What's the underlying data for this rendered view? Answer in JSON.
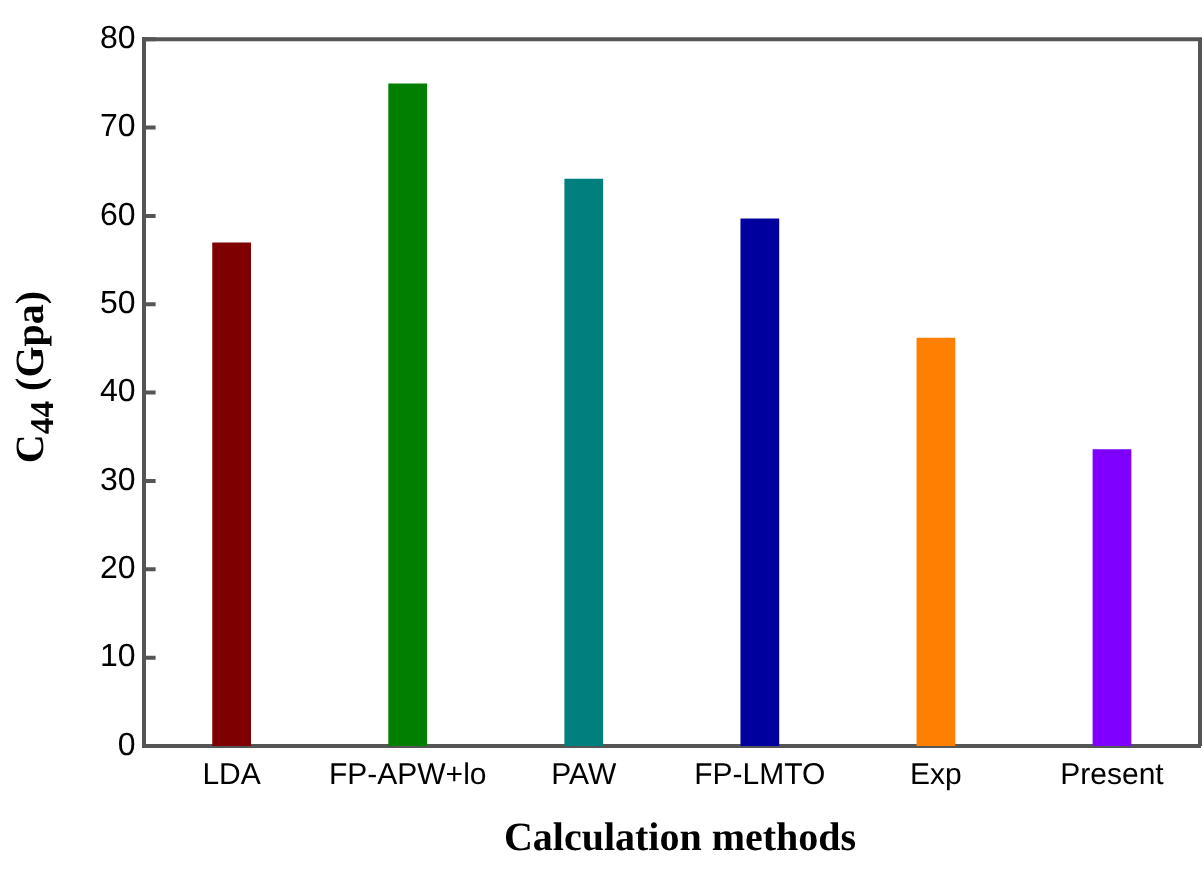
{
  "chart_data": {
    "type": "bar",
    "xlabel": "Calculation methods",
    "ylabel": "C$_{44}$ (Gpa)",
    "categories": [
      "LDA",
      "FP-APW+lo",
      "PAW",
      "FP-LMTO",
      "Exp",
      "Present"
    ],
    "values": [
      57.0,
      75.0,
      64.2,
      59.7,
      46.2,
      33.6
    ],
    "colors": [
      "#7f0000",
      "#007f00",
      "#007f7f",
      "#00009f",
      "#ff7f00",
      "#7f00ff"
    ],
    "ylim": [
      0,
      80
    ],
    "yticks": [
      0,
      10,
      20,
      30,
      40,
      50,
      60,
      70,
      80
    ],
    "grid": false,
    "legend": false
  }
}
